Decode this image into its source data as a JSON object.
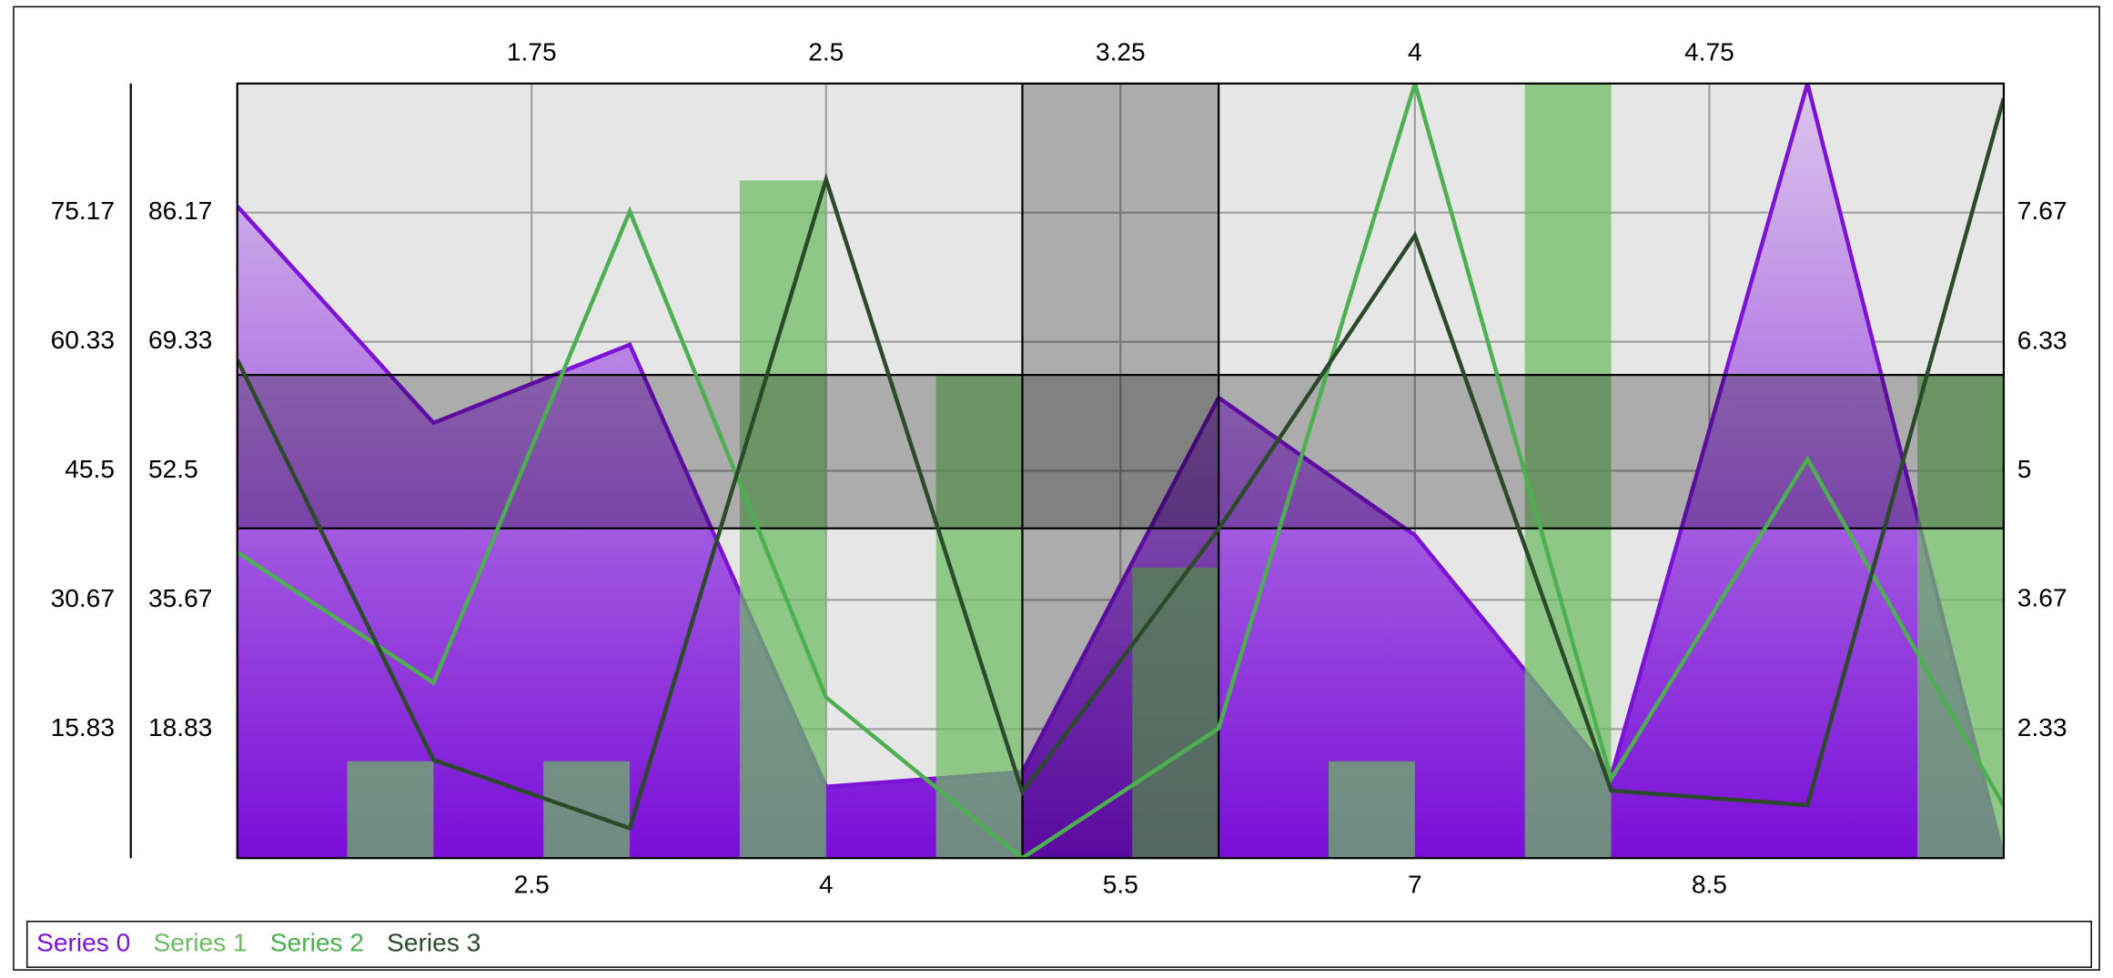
{
  "chart_data": {
    "type": "combo",
    "x": [
      1,
      2,
      3,
      4,
      5,
      6,
      7,
      8,
      9,
      10
    ],
    "xlim": [
      1,
      10
    ],
    "xticks": [
      2.5,
      4,
      5.5,
      7,
      8.5
    ],
    "x2lim": [
      1,
      5.5
    ],
    "x2ticks": [
      1.75,
      2.5,
      3.25,
      4,
      4.75
    ],
    "ylim": [
      2,
      103
    ],
    "yticks": [
      18.83,
      35.67,
      52.5,
      69.33,
      86.17
    ],
    "y2lim": [
      1,
      9
    ],
    "y2ticks": [
      2.33,
      3.67,
      5,
      6.33,
      7.67
    ],
    "y3lim": [
      1,
      90
    ],
    "y3ticks": [
      15.83,
      30.67,
      45.5,
      60.33,
      75.17
    ],
    "grid": true,
    "x_bands": [
      [
        5,
        6
      ]
    ],
    "y_bands": [
      [
        45,
        65
      ]
    ],
    "series": [
      {
        "name": "Series 0",
        "type": "area",
        "axis": "y3",
        "color": "#7b12d4",
        "values": [
          75.9,
          51,
          60,
          9.2,
          10.9,
          53.9,
          38.1,
          10.4,
          90,
          1
        ]
      },
      {
        "name": "Series 1",
        "type": "bar",
        "axis": "y2",
        "color": "#6dbb63",
        "values": [
          1,
          2,
          2,
          8,
          6,
          4,
          2,
          9,
          1,
          6
        ]
      },
      {
        "name": "Series 2",
        "type": "line",
        "axis": "y2",
        "color": "#4caf50",
        "values": [
          4.16,
          2.81,
          7.68,
          2.66,
          1,
          2.34,
          9,
          1.82,
          5.12,
          1.54
        ]
      },
      {
        "name": "Series 3",
        "type": "line",
        "axis": "y",
        "color": "#2a4a2a",
        "values": [
          67,
          14.8,
          5.9,
          90.5,
          10.6,
          44.9,
          83.2,
          10.8,
          8.9,
          101.1
        ]
      }
    ]
  }
}
